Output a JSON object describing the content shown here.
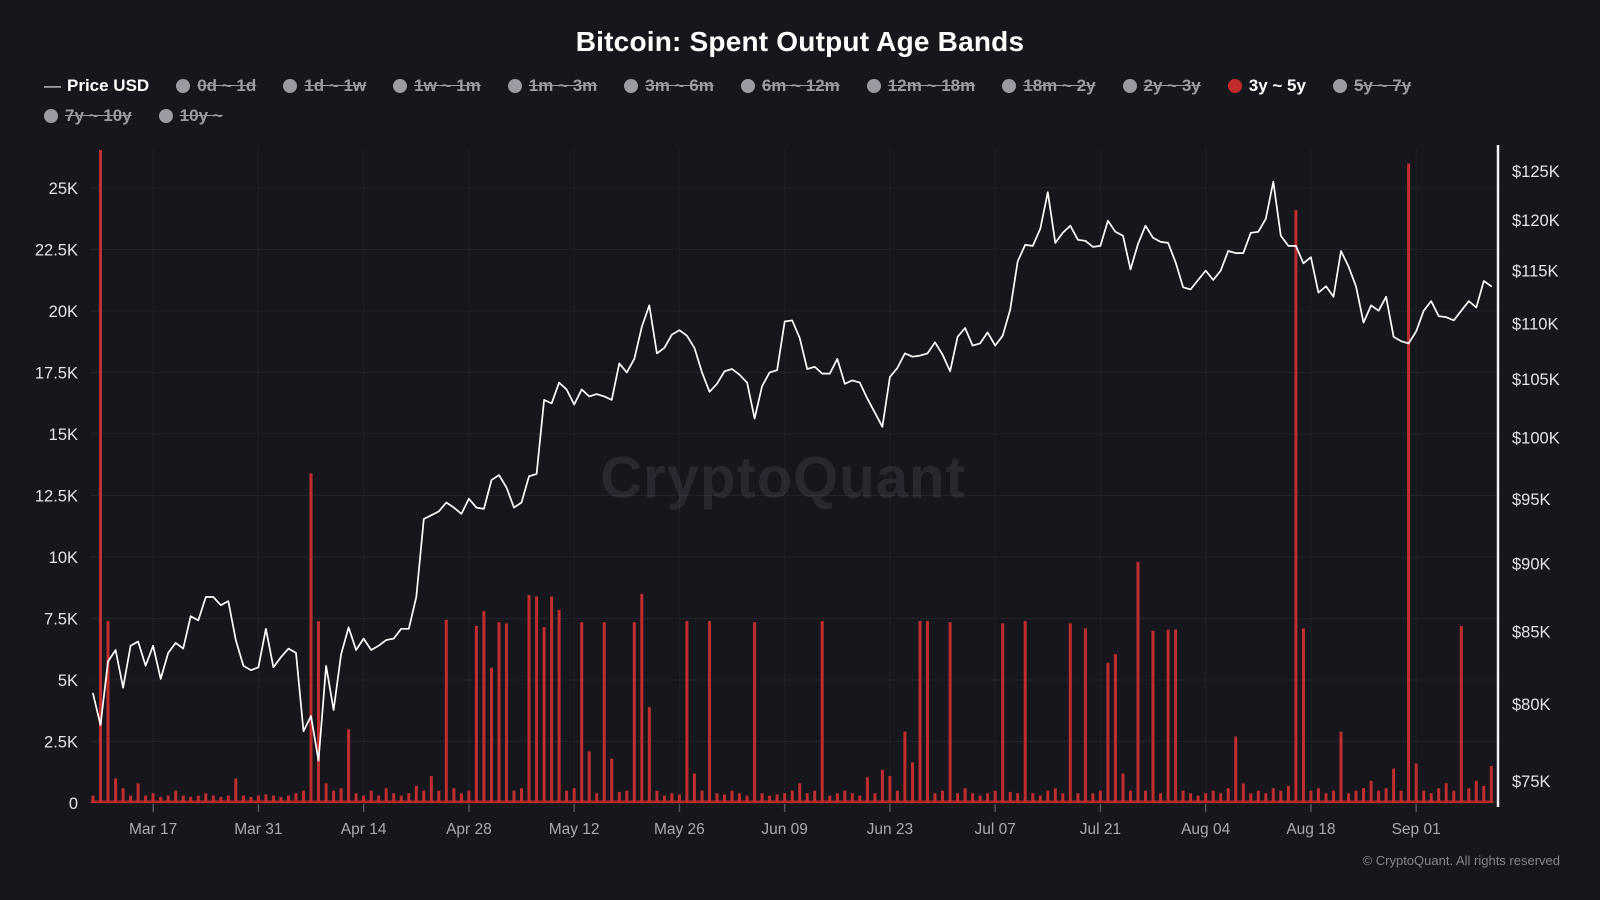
{
  "header": {
    "title": "Bitcoin: Spent Output Age Bands"
  },
  "legend": {
    "items": [
      {
        "label": "Price USD",
        "kind": "price-line",
        "state": "on",
        "row": 1
      },
      {
        "label": "0d ~ 1d",
        "kind": "band",
        "state": "off",
        "row": 1
      },
      {
        "label": "1d ~ 1w",
        "kind": "band",
        "state": "off",
        "row": 1
      },
      {
        "label": "1w ~ 1m",
        "kind": "band",
        "state": "off",
        "row": 1
      },
      {
        "label": "1m ~ 3m",
        "kind": "band",
        "state": "off",
        "row": 1
      },
      {
        "label": "3m ~ 6m",
        "kind": "band",
        "state": "off",
        "row": 1
      },
      {
        "label": "6m ~ 12m",
        "kind": "band",
        "state": "off",
        "row": 1
      },
      {
        "label": "12m ~ 18m",
        "kind": "band",
        "state": "off",
        "row": 1
      },
      {
        "label": "18m ~ 2y",
        "kind": "band",
        "state": "off",
        "row": 1
      },
      {
        "label": "2y ~ 3y",
        "kind": "band",
        "state": "off",
        "row": 1
      },
      {
        "label": "3y ~ 5y",
        "kind": "band",
        "state": "on",
        "row": 1
      },
      {
        "label": "5y ~ 7y",
        "kind": "band",
        "state": "off",
        "row": 1
      },
      {
        "label": "7y ~ 10y",
        "kind": "band",
        "state": "off",
        "row": 2
      },
      {
        "label": "10y ~",
        "kind": "band",
        "state": "off",
        "row": 2
      }
    ],
    "active_color": "#c12b2b",
    "inactive_color": "#9b9ba4"
  },
  "watermark": {
    "text": "CryptoQuant"
  },
  "footer": {
    "copyright": "© CryptoQuant. All rights reserved"
  },
  "chart_data": {
    "type": "bar",
    "title": "Bitcoin: Spent Output Age Bands",
    "x_ticks": [
      "Mar 17",
      "Mar 31",
      "Apr 14",
      "Apr 28",
      "May 12",
      "May 26",
      "Jun 09",
      "Jun 23",
      "Jul 07",
      "Jul 21",
      "Aug 04",
      "Aug 18",
      "Sep 01"
    ],
    "x_tick_first_index": 8,
    "x_tick_step": 14,
    "x_range_note": "daily points, Mar 09 to Sep 11",
    "left_axis": {
      "title": "",
      "ticks": [
        "25K",
        "22.5K",
        "20K",
        "17.5K",
        "15K",
        "12.5K",
        "10K",
        "7.5K",
        "5K",
        "2.5K",
        "0"
      ],
      "tick_values_k": [
        25,
        22.5,
        20,
        17.5,
        15,
        12.5,
        10,
        7.5,
        5,
        2.5,
        0
      ],
      "min": 0,
      "clip_max_k": 26.6,
      "grid": true
    },
    "right_axis": {
      "title": "",
      "scale": "log",
      "ticks": [
        "$125K",
        "$120K",
        "$115K",
        "$110K",
        "$105K",
        "$100K",
        "$95K",
        "$90K",
        "$85K",
        "$80K",
        "$75K"
      ],
      "tick_values_k": [
        125,
        120,
        115,
        110,
        105,
        100,
        95,
        90,
        85,
        80,
        75
      ]
    },
    "series": [
      {
        "name": "3y ~ 5y",
        "type": "bar",
        "unit": "K BTC (left axis)",
        "color": "#bf2e2e",
        "values": [
          0.3,
          27.0,
          7.4,
          1.0,
          0.6,
          0.3,
          0.8,
          0.3,
          0.4,
          0.25,
          0.3,
          0.5,
          0.3,
          0.25,
          0.3,
          0.4,
          0.3,
          0.25,
          0.3,
          1.0,
          0.3,
          0.25,
          0.3,
          0.35,
          0.3,
          0.25,
          0.3,
          0.4,
          0.5,
          13.4,
          7.4,
          0.8,
          0.5,
          0.6,
          3.0,
          0.4,
          0.3,
          0.5,
          0.3,
          0.6,
          0.4,
          0.3,
          0.4,
          0.7,
          0.5,
          1.1,
          0.5,
          7.45,
          0.6,
          0.4,
          0.5,
          7.2,
          7.8,
          5.5,
          7.35,
          7.3,
          0.5,
          0.6,
          8.45,
          8.4,
          7.15,
          8.4,
          7.85,
          0.5,
          0.6,
          7.35,
          2.1,
          0.4,
          7.35,
          1.8,
          0.45,
          0.5,
          7.35,
          8.5,
          3.9,
          0.5,
          0.3,
          0.4,
          0.35,
          7.4,
          1.2,
          0.5,
          7.4,
          0.4,
          0.35,
          0.5,
          0.4,
          0.3,
          7.35,
          0.4,
          0.3,
          0.35,
          0.4,
          0.5,
          0.8,
          0.4,
          0.5,
          7.4,
          0.3,
          0.4,
          0.5,
          0.4,
          0.3,
          1.05,
          0.4,
          1.35,
          1.1,
          0.5,
          2.9,
          1.65,
          7.4,
          7.4,
          0.4,
          0.5,
          7.35,
          0.4,
          0.6,
          0.4,
          0.3,
          0.4,
          0.5,
          7.3,
          0.45,
          0.4,
          7.4,
          0.4,
          0.3,
          0.5,
          0.6,
          0.4,
          7.3,
          0.4,
          7.1,
          0.4,
          0.5,
          5.7,
          6.05,
          1.2,
          0.5,
          9.8,
          0.5,
          7.0,
          0.4,
          7.05,
          7.05,
          0.5,
          0.4,
          0.3,
          0.4,
          0.5,
          0.4,
          0.6,
          2.7,
          0.8,
          0.4,
          0.5,
          0.4,
          0.6,
          0.5,
          0.7,
          24.1,
          7.1,
          0.5,
          0.6,
          0.4,
          0.5,
          2.9,
          0.4,
          0.5,
          0.6,
          0.9,
          0.5,
          0.6,
          1.4,
          0.5,
          26.0,
          1.6,
          0.5,
          0.4,
          0.6,
          0.8,
          0.5,
          7.2,
          0.6,
          0.9,
          0.7,
          1.5
        ]
      },
      {
        "name": "Price USD",
        "type": "line",
        "unit": "$K (right axis, log)",
        "color": "#ffffff",
        "values": [
          80.7,
          78.6,
          82.9,
          83.7,
          81.1,
          84.0,
          84.3,
          82.6,
          84.0,
          81.7,
          83.5,
          84.2,
          83.8,
          86.1,
          85.8,
          87.5,
          87.5,
          86.9,
          87.2,
          84.4,
          82.6,
          82.3,
          82.5,
          85.2,
          82.5,
          83.2,
          83.8,
          83.5,
          78.2,
          79.2,
          76.3,
          82.6,
          79.6,
          83.4,
          85.3,
          83.7,
          84.5,
          83.7,
          84.0,
          84.4,
          84.5,
          85.2,
          85.2,
          87.5,
          93.4,
          93.7,
          94.0,
          94.7,
          94.3,
          93.8,
          95.0,
          94.3,
          94.2,
          96.5,
          96.9,
          95.9,
          94.3,
          94.7,
          96.8,
          97.0,
          103.2,
          102.9,
          104.7,
          104.1,
          102.8,
          104.1,
          103.5,
          103.7,
          103.5,
          103.2,
          106.4,
          105.6,
          106.8,
          109.7,
          111.7,
          107.3,
          107.8,
          109.0,
          109.4,
          108.9,
          107.8,
          105.6,
          103.9,
          104.6,
          105.7,
          105.9,
          105.4,
          104.7,
          101.6,
          104.4,
          105.6,
          105.8,
          110.2,
          110.3,
          108.7,
          105.9,
          106.1,
          105.5,
          105.5,
          106.8,
          104.6,
          104.9,
          104.7,
          103.3,
          102.1,
          100.9,
          105.2,
          106.0,
          107.3,
          107.0,
          107.1,
          107.3,
          108.3,
          107.2,
          105.7,
          108.8,
          109.6,
          108.0,
          108.2,
          109.2,
          108.0,
          108.9,
          111.3,
          115.9,
          117.5,
          117.4,
          119.1,
          122.8,
          117.7,
          118.7,
          119.4,
          118.0,
          117.9,
          117.3,
          117.4,
          119.9,
          118.8,
          118.4,
          115.1,
          117.6,
          119.4,
          118.2,
          117.8,
          117.7,
          115.8,
          113.4,
          113.2,
          114.1,
          115.0,
          114.1,
          115.0,
          116.9,
          116.7,
          116.7,
          118.7,
          118.8,
          120.1,
          123.9,
          118.4,
          117.4,
          117.4,
          115.7,
          116.3,
          112.9,
          113.5,
          112.5,
          116.9,
          115.4,
          113.5,
          110.1,
          111.7,
          111.2,
          112.5,
          108.8,
          108.4,
          108.2,
          109.3,
          111.2,
          112.1,
          110.7,
          110.6,
          110.3,
          111.2,
          112.1,
          111.5,
          114.0,
          113.5
        ]
      }
    ],
    "legend_position": "top-left",
    "grid": true,
    "background": "#16161d"
  }
}
